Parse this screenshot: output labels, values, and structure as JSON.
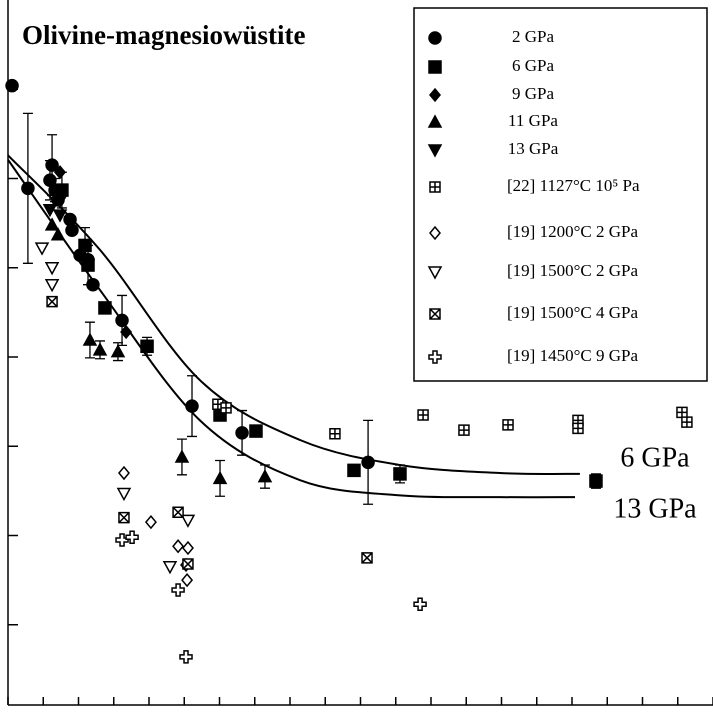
{
  "chart_data": {
    "type": "scatter",
    "title": "Olivine-magnesiowüstite",
    "xlim": [
      0,
      40
    ],
    "ylim": [
      0,
      8
    ],
    "xticks": [
      0,
      2,
      4,
      6,
      8,
      10,
      12,
      14,
      16,
      18,
      20,
      22,
      24,
      26,
      28,
      30,
      32,
      34,
      36,
      38,
      40
    ],
    "yticks": [
      1,
      2,
      3,
      4,
      5,
      6,
      7
    ],
    "legend": "top-right",
    "series": [
      {
        "name": "2 GPa",
        "marker": "circle",
        "filled": true,
        "color": "#000000",
        "x": [
          0.23,
          1.13,
          2.38,
          2.5,
          2.67,
          2.84,
          2.95,
          3.52,
          3.63,
          4.09,
          4.54,
          4.82,
          6.47,
          10.44,
          13.28,
          20.43
        ],
        "values": [
          7.04,
          5.89,
          5.98,
          6.15,
          5.87,
          5.76,
          5.82,
          5.54,
          5.42,
          5.14,
          5.09,
          4.81,
          4.41,
          3.45,
          3.15,
          2.82
        ],
        "errors": [
          null,
          0.84,
          0.22,
          0.34,
          0.13,
          null,
          null,
          null,
          null,
          null,
          null,
          null,
          0.28,
          0.34,
          0.25,
          0.47
        ]
      },
      {
        "name": "6 GPa",
        "marker": "square",
        "filled": true,
        "color": "#000000",
        "x": [
          3.06,
          4.37,
          4.54,
          5.5,
          7.89,
          12.03,
          14.07,
          19.63,
          22.24,
          33.36
        ],
        "values": [
          5.87,
          5.25,
          5.03,
          4.55,
          4.12,
          3.35,
          3.17,
          2.73,
          2.69,
          2.61
        ],
        "errors": [
          0.2,
          0.2,
          0.22,
          null,
          0.1,
          null,
          null,
          null,
          0.1,
          0.08
        ]
      },
      {
        "name": "9 GPa",
        "marker": "diamond",
        "filled": true,
        "color": "#000000",
        "x": [
          2.95,
          6.7
        ],
        "values": [
          6.07,
          4.28
        ]
      },
      {
        "name": "11 GPa",
        "marker": "triangle-up",
        "filled": true,
        "color": "#000000",
        "x": [
          2.5,
          2.84,
          4.65,
          5.22,
          6.24,
          9.87,
          12.03,
          14.58
        ],
        "values": [
          5.48,
          5.37,
          4.19,
          4.08,
          4.06,
          2.88,
          2.64,
          2.66
        ],
        "errors": [
          null,
          null,
          0.2,
          0.1,
          0.1,
          0.2,
          0.2,
          0.13
        ]
      },
      {
        "name": "13 GPa",
        "marker": "triangle-down",
        "filled": true,
        "color": "#000000",
        "x": [
          2.38,
          2.95
        ],
        "values": [
          5.65,
          5.59
        ]
      },
      {
        "name": "[22] 1127°C 10⁵ Pa",
        "marker": "box-plus",
        "filled": false,
        "color": "#000000",
        "x": [
          11.91,
          12.37,
          18.55,
          23.55,
          25.87,
          28.37,
          32.34,
          32.34,
          38.24,
          38.52
        ],
        "values": [
          3.47,
          3.43,
          3.14,
          3.35,
          3.18,
          3.24,
          3.29,
          3.2,
          3.38,
          3.27
        ]
      },
      {
        "name": "[19] 1200°C 2 GPa",
        "marker": "diamond",
        "filled": false,
        "color": "#000000",
        "x": [
          6.58,
          8.11,
          9.65,
          10.21,
          10.1,
          10.16
        ],
        "values": [
          2.7,
          2.15,
          1.88,
          1.86,
          1.67,
          1.5
        ]
      },
      {
        "name": "[19] 1500°C 2 GPa",
        "marker": "triangle-down",
        "filled": false,
        "color": "#000000",
        "x": [
          1.93,
          2.5,
          2.5,
          6.58,
          10.21,
          9.19
        ],
        "values": [
          5.22,
          5.0,
          4.81,
          2.47,
          2.17,
          1.65
        ]
      },
      {
        "name": "[19] 1500°C 4 GPa",
        "marker": "box-times",
        "filled": false,
        "color": "#000000",
        "x": [
          2.5,
          6.58,
          9.65,
          10.21,
          20.37
        ],
        "values": [
          4.62,
          2.2,
          2.26,
          1.68,
          1.75
        ]
      },
      {
        "name": "[19] 1450°C 9 GPa",
        "marker": "plus",
        "filled": false,
        "color": "#000000",
        "x": [
          6.47,
          7.04,
          9.65,
          10.1,
          23.38
        ],
        "values": [
          1.95,
          1.98,
          1.39,
          0.64,
          1.23
        ]
      }
    ],
    "curves": [
      {
        "name": "6 GPa",
        "x": [
          0,
          5.22,
          10.89,
          16.57,
          22.24,
          27.91,
          32.45
        ],
        "values": [
          6.26,
          5.2,
          3.74,
          3.07,
          2.79,
          2.7,
          2.69
        ]
      },
      {
        "name": "13 GPa",
        "x": [
          0,
          5.22,
          10.89,
          16.57,
          22.24,
          27.91,
          32.17
        ],
        "values": [
          6.21,
          4.75,
          3.29,
          2.62,
          2.45,
          2.43,
          2.43
        ]
      }
    ]
  }
}
